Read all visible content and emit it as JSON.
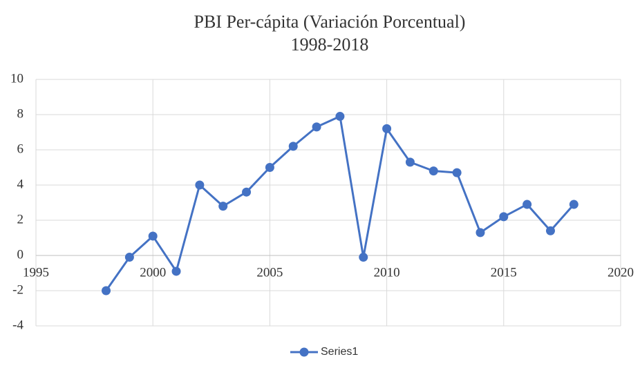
{
  "chart_data": {
    "type": "line",
    "title": "PBI Per-cápita (Variación Porcentual)",
    "subtitle": "1998-2018",
    "x": [
      1998,
      1999,
      2000,
      2001,
      2002,
      2003,
      2004,
      2005,
      2006,
      2007,
      2008,
      2009,
      2010,
      2011,
      2012,
      2013,
      2014,
      2015,
      2016,
      2017,
      2018
    ],
    "series": [
      {
        "name": "Series1",
        "color": "#4472c4",
        "values": [
          -2.0,
          -0.1,
          1.1,
          -0.9,
          4.0,
          2.8,
          3.6,
          5.0,
          6.2,
          7.3,
          7.9,
          -0.1,
          7.2,
          5.3,
          4.8,
          4.7,
          1.3,
          2.2,
          2.9,
          1.4,
          2.9
        ]
      }
    ],
    "xlim": [
      1995,
      2020
    ],
    "xticks": [
      1995,
      2000,
      2005,
      2010,
      2015,
      2020
    ],
    "ylim": [
      -4,
      10
    ],
    "yticks": [
      -4,
      -2,
      0,
      2,
      4,
      6,
      8,
      10
    ],
    "grid": true,
    "legend": "bottom"
  }
}
